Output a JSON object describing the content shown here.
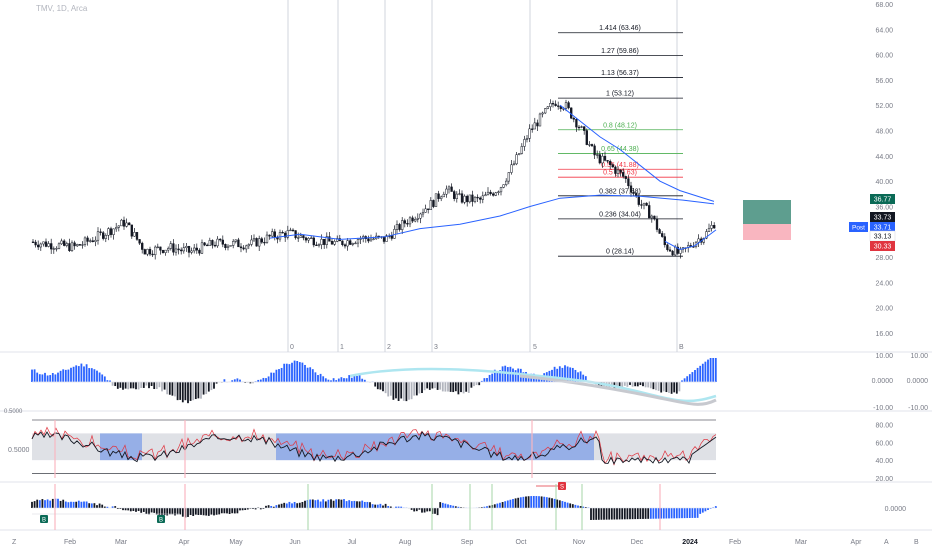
{
  "symbol_title": "TMV, 1D, Arca",
  "colors": {
    "up": "#131722",
    "down": "#131722",
    "ma": "#2962ff",
    "fib_line": "#131722",
    "fib_green": "#4caf50",
    "fib_red": "#f23645",
    "profit_zone": "#5e9e8f",
    "loss_zone": "#f9b6c0",
    "macd_pos": "#2962ff",
    "macd_neg": "#131722",
    "rsi_band_blue": "#8aa6e6",
    "rsi_band_gray": "#d1d4dc",
    "badge_green": "#0a6a56",
    "badge_red": "#e0343f"
  },
  "price_axis": {
    "ticks": [
      "68.00",
      "64.00",
      "60.00",
      "56.00",
      "52.00",
      "48.00",
      "44.00",
      "40.00",
      "36.00",
      "32.00",
      "28.00",
      "24.00",
      "20.00",
      "16.00"
    ],
    "badges": [
      {
        "label": "36.77",
        "color": "#0a6a56"
      },
      {
        "label": "33.73",
        "color": "#131722"
      },
      {
        "label": "33.71",
        "color": "#2962ff",
        "prefix": "Post"
      },
      {
        "label": "33.13",
        "color": "#ffffff"
      },
      {
        "label": "30.33",
        "color": "#e0343f"
      }
    ]
  },
  "fib_levels": [
    {
      "label": "1.414 (63.46)",
      "color": "#131722"
    },
    {
      "label": "1.27 (59.86)",
      "color": "#131722"
    },
    {
      "label": "1.13 (56.37)",
      "color": "#131722"
    },
    {
      "label": "1 (53.12)",
      "color": "#131722"
    },
    {
      "label": "0.8 (48.12)",
      "color": "#4caf50"
    },
    {
      "label": "0.65 (44.38)",
      "color": "#4caf50"
    },
    {
      "label": "0.55 (41.88)",
      "color": "#f23645"
    },
    {
      "label": "0.5 (40.63)",
      "color": "#f23645"
    },
    {
      "label": "0.382 (37.68)",
      "color": "#131722"
    },
    {
      "label": "0.236 (34.04)",
      "color": "#131722"
    },
    {
      "label": "0 (28.14)",
      "color": "#131722"
    }
  ],
  "wave_labels": [
    "0",
    "1",
    "2",
    "3",
    "5",
    "B"
  ],
  "macd_axis": {
    "ticks_left": [
      "10.00",
      "0.0000",
      "-10.00"
    ],
    "ticks_right": [
      "10.00",
      "0.0000",
      "-10.00"
    ]
  },
  "rsi_axis": {
    "left": "0.5000",
    "ticks": [
      "80.00",
      "60.00",
      "40.00",
      "20.00"
    ]
  },
  "osc_axis": {
    "left": "0.0000"
  },
  "signals": [
    "B",
    "B",
    "S"
  ],
  "time_axis": {
    "labels": [
      "Feb",
      "Mar",
      "Apr",
      "May",
      "Jun",
      "Jul",
      "Aug",
      "Sep",
      "Oct",
      "Nov",
      "Dec",
      "2024",
      "Feb",
      "Mar",
      "Apr"
    ],
    "corner_left": "Z",
    "corner_right": [
      "A",
      "B"
    ]
  }
}
